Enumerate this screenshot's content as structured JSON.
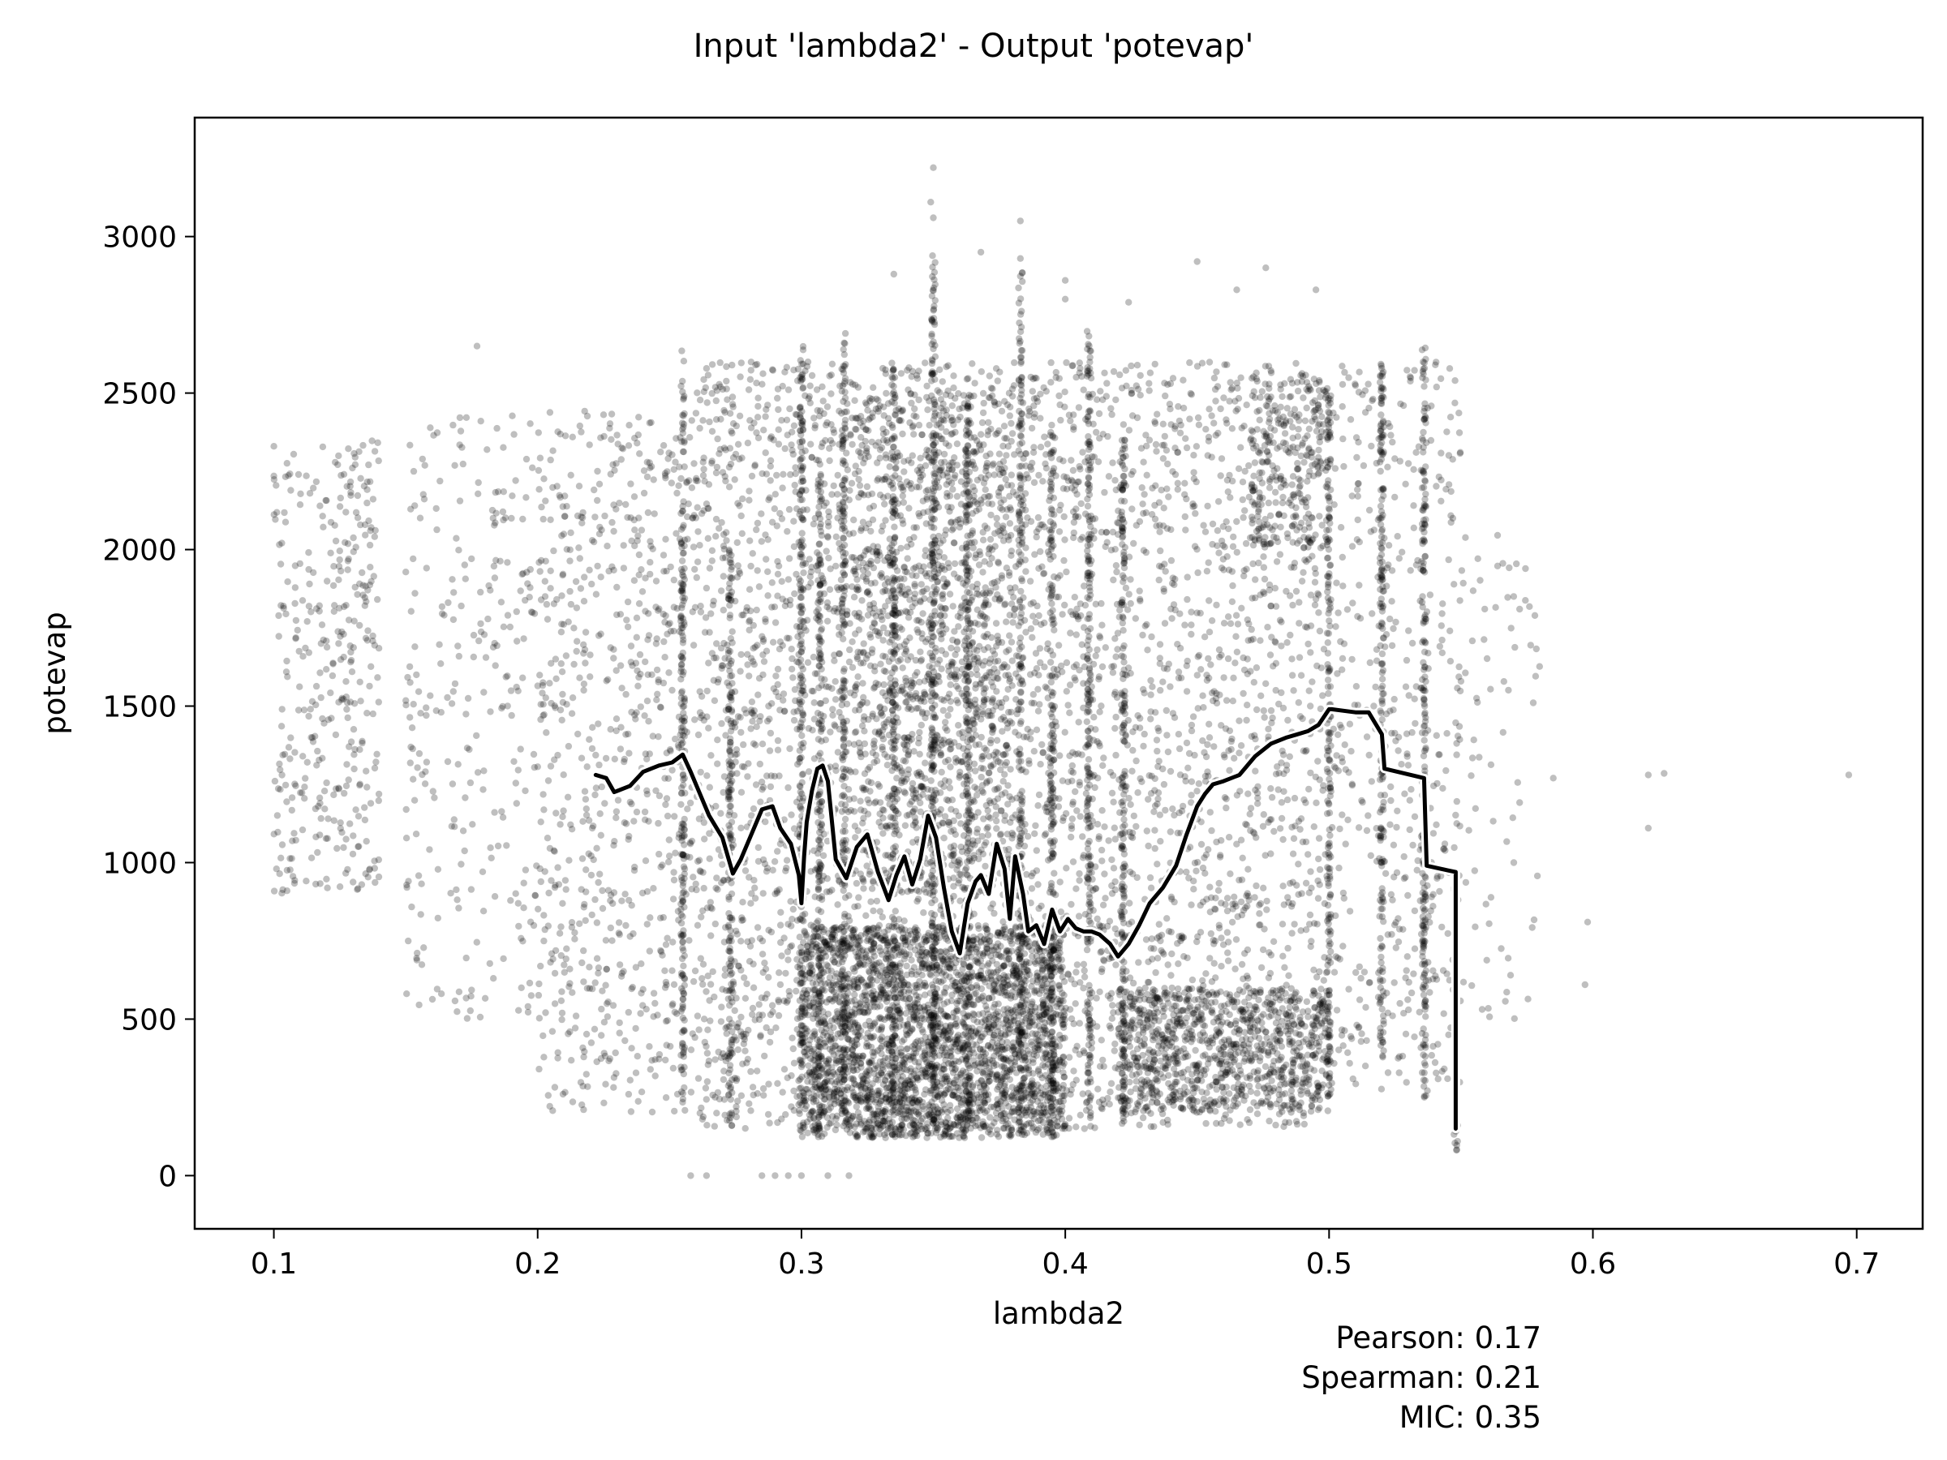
{
  "chart_data": {
    "type": "scatter",
    "title": "Input 'lambda2' - Output 'potevap'",
    "xlabel": "lambda2",
    "ylabel": "potevap",
    "xlim": [
      0.07,
      0.725
    ],
    "ylim": [
      -170,
      3380
    ],
    "xticks": [
      "0.1",
      "0.2",
      "0.3",
      "0.4",
      "0.5",
      "0.6",
      "0.7"
    ],
    "yticks": [
      "0",
      "500",
      "1000",
      "1500",
      "2000",
      "2500",
      "3000"
    ],
    "grid": false,
    "point_color": "#000000",
    "trend_color": "#000000",
    "trend_outline_color": "#ffffff",
    "scatter_clusters": [
      {
        "x": [
          0.1,
          0.14
        ],
        "y": [
          900,
          2350
        ],
        "n": 350
      },
      {
        "x": [
          0.15,
          0.2
        ],
        "y": [
          500,
          2450
        ],
        "n": 260
      },
      {
        "x": [
          0.2,
          0.26
        ],
        "y": [
          200,
          2450
        ],
        "n": 700
      },
      {
        "x": [
          0.26,
          0.42
        ],
        "y": [
          150,
          2600
        ],
        "n": 3000
      },
      {
        "x": [
          0.3,
          0.4
        ],
        "y": [
          120,
          800
        ],
        "n": 2600
      },
      {
        "x": [
          0.32,
          0.38
        ],
        "y": [
          900,
          2500
        ],
        "n": 1000
      },
      {
        "x": [
          0.42,
          0.5
        ],
        "y": [
          150,
          2600
        ],
        "n": 1200
      },
      {
        "x": [
          0.42,
          0.5
        ],
        "y": [
          200,
          600
        ],
        "n": 900
      },
      {
        "x": [
          0.47,
          0.5
        ],
        "y": [
          2000,
          2550
        ],
        "n": 260
      },
      {
        "x": [
          0.5,
          0.55
        ],
        "y": [
          250,
          2600
        ],
        "n": 450
      },
      {
        "x": [
          0.55,
          0.58
        ],
        "y": [
          500,
          2050
        ],
        "n": 70
      }
    ],
    "vertical_streaks": [
      {
        "x": 0.255,
        "y": [
          220,
          2650
        ]
      },
      {
        "x": 0.273,
        "y": [
          140,
          2000
        ]
      },
      {
        "x": 0.3,
        "y": [
          140,
          2650
        ]
      },
      {
        "x": 0.307,
        "y": [
          140,
          2250
        ]
      },
      {
        "x": 0.316,
        "y": [
          160,
          2700
        ]
      },
      {
        "x": 0.335,
        "y": [
          160,
          2600
        ]
      },
      {
        "x": 0.35,
        "y": [
          140,
          2950
        ]
      },
      {
        "x": 0.363,
        "y": [
          140,
          2500
        ]
      },
      {
        "x": 0.383,
        "y": [
          140,
          2900
        ]
      },
      {
        "x": 0.395,
        "y": [
          140,
          2400
        ]
      },
      {
        "x": 0.409,
        "y": [
          160,
          2700
        ]
      },
      {
        "x": 0.422,
        "y": [
          160,
          2400
        ]
      },
      {
        "x": 0.5,
        "y": [
          250,
          2500
        ]
      },
      {
        "x": 0.52,
        "y": [
          380,
          2600
        ]
      },
      {
        "x": 0.536,
        "y": [
          250,
          2650
        ]
      },
      {
        "x": 0.548,
        "y": [
          80,
          180
        ]
      }
    ],
    "outliers": {
      "x": [
        0.697,
        0.621,
        0.627,
        0.621,
        0.598,
        0.597,
        0.585,
        0.57,
        0.559,
        0.35,
        0.35,
        0.349,
        0.383,
        0.383,
        0.335,
        0.368,
        0.4,
        0.4,
        0.424,
        0.45,
        0.476,
        0.465,
        0.495,
        0.1,
        0.101,
        0.105,
        0.177,
        0.285,
        0.29,
        0.295,
        0.3,
        0.31,
        0.318,
        0.258,
        0.264
      ],
      "y": [
        1280,
        1280,
        1285,
        1110,
        810,
        610,
        1270,
        1000,
        1810,
        3220,
        3060,
        3110,
        3050,
        2930,
        2880,
        2950,
        2800,
        2860,
        2790,
        2920,
        2900,
        2830,
        2830,
        2330,
        980,
        910,
        2650,
        0,
        0,
        0,
        0,
        0,
        0,
        0,
        0
      ]
    },
    "trend_line": {
      "name": "",
      "x": [
        0.222,
        0.226,
        0.229,
        0.235,
        0.24,
        0.246,
        0.251,
        0.255,
        0.258,
        0.261,
        0.265,
        0.27,
        0.274,
        0.277,
        0.281,
        0.285,
        0.289,
        0.292,
        0.296,
        0.299,
        0.3,
        0.301,
        0.302,
        0.304,
        0.306,
        0.308,
        0.31,
        0.313,
        0.317,
        0.321,
        0.325,
        0.329,
        0.333,
        0.336,
        0.339,
        0.342,
        0.345,
        0.348,
        0.351,
        0.354,
        0.357,
        0.36,
        0.363,
        0.366,
        0.368,
        0.371,
        0.374,
        0.377,
        0.379,
        0.381,
        0.384,
        0.386,
        0.389,
        0.392,
        0.395,
        0.398,
        0.401,
        0.404,
        0.407,
        0.41,
        0.413,
        0.417,
        0.42,
        0.424,
        0.428,
        0.432,
        0.437,
        0.442,
        0.446,
        0.45,
        0.453,
        0.456,
        0.46,
        0.466,
        0.472,
        0.478,
        0.484,
        0.488,
        0.492,
        0.496,
        0.5,
        0.501,
        0.51,
        0.515,
        0.52,
        0.521,
        0.536,
        0.537,
        0.545,
        0.548,
        0.548
      ],
      "y": [
        1280,
        1270,
        1225,
        1245,
        1290,
        1310,
        1320,
        1345,
        1290,
        1230,
        1150,
        1080,
        965,
        1010,
        1090,
        1170,
        1180,
        1110,
        1060,
        960,
        870,
        1020,
        1130,
        1230,
        1300,
        1310,
        1260,
        1010,
        950,
        1050,
        1090,
        970,
        880,
        960,
        1020,
        930,
        1010,
        1150,
        1080,
        920,
        780,
        710,
        870,
        940,
        960,
        900,
        1060,
        980,
        820,
        1020,
        900,
        780,
        800,
        740,
        850,
        780,
        820,
        790,
        780,
        780,
        770,
        740,
        700,
        740,
        800,
        870,
        920,
        990,
        1090,
        1180,
        1220,
        1250,
        1260,
        1280,
        1340,
        1380,
        1400,
        1410,
        1420,
        1440,
        1490,
        1490,
        1480,
        1480,
        1410,
        1300,
        1270,
        990,
        975,
        970,
        150
      ]
    }
  },
  "stats": {
    "pearson": "Pearson: 0.17",
    "spearman": "Spearman: 0.21",
    "mic": "MIC: 0.35"
  }
}
